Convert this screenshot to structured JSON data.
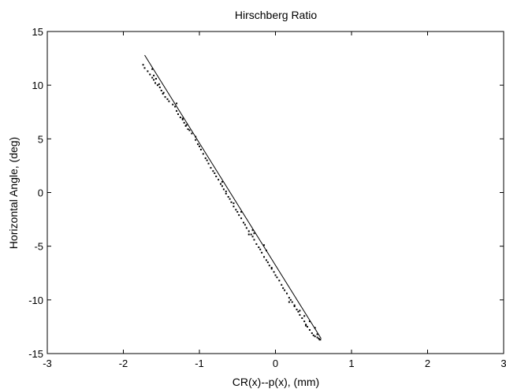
{
  "chart_data": {
    "type": "scatter",
    "title": "Hirschberg Ratio",
    "xlabel": "CR(x)--p(x), (mm)",
    "ylabel": "Horizontal Angle, (deg)",
    "xlim": [
      -3,
      3
    ],
    "ylim": [
      -15,
      15
    ],
    "xticks": [
      "-3",
      "-2",
      "-1",
      "0",
      "1",
      "2",
      "3"
    ],
    "yticks": [
      "15",
      "10",
      "5",
      "0",
      "-5",
      "-10",
      "-15"
    ],
    "grid": false,
    "marker_color": "#000000",
    "line_color": "#000000",
    "fit_line": {
      "x": [
        -1.72,
        0.6
      ],
      "y": [
        12.8,
        -13.6
      ]
    },
    "series": [
      {
        "x": [
          -1.74,
          -1.72,
          -1.68,
          -1.65,
          -1.62,
          -1.6,
          -1.58,
          -1.62,
          -1.55,
          -1.52,
          -1.5,
          -1.48,
          -1.45,
          -1.6,
          -1.57,
          -1.53,
          -1.47,
          -1.42,
          -1.4,
          -1.35,
          -1.32,
          -1.3,
          -1.28,
          -1.25,
          -1.22,
          -1.2,
          -1.18,
          -1.15,
          -1.22,
          -1.17,
          -1.13,
          -1.1,
          -1.05,
          -1.02,
          -1.0,
          -0.98,
          -0.95,
          -0.92,
          -0.9,
          -0.88,
          -0.85,
          -0.82,
          -0.8,
          -0.78,
          -0.75,
          -0.72,
          -0.7,
          -0.68,
          -0.65,
          -0.62,
          -0.6,
          -0.58,
          -0.55,
          -0.52,
          -0.5,
          -0.48,
          -0.45,
          -0.42,
          -0.4,
          -0.38,
          -0.35,
          -0.32,
          -0.3,
          -0.28,
          -0.25,
          -0.22,
          -0.2,
          -0.18,
          -0.15,
          -0.12,
          -0.1,
          -0.08,
          -0.05,
          -0.02,
          0.0,
          0.02,
          0.05,
          0.08,
          0.1,
          0.12,
          0.15,
          0.18,
          0.2,
          0.22,
          0.25,
          0.28,
          0.3,
          0.32,
          0.35,
          0.38,
          0.4,
          0.42,
          0.45,
          0.48,
          0.5,
          0.52,
          0.55,
          0.57,
          0.58,
          0.59,
          -0.3,
          -0.28,
          -0.15,
          -0.12,
          0.18,
          0.25,
          0.32,
          0.38,
          0.45,
          0.52,
          -0.7,
          -0.65,
          -0.55,
          -0.45,
          -1.3,
          -1.05,
          -0.35,
          -0.05,
          0.4,
          0.55
        ],
        "y": [
          11.9,
          11.6,
          11.3,
          11.0,
          10.7,
          10.5,
          10.2,
          11.5,
          10.0,
          9.8,
          9.5,
          9.2,
          8.9,
          10.9,
          10.6,
          10.1,
          9.3,
          8.7,
          8.5,
          8.2,
          8.0,
          7.6,
          7.3,
          7.0,
          6.8,
          6.5,
          6.2,
          5.9,
          6.9,
          6.3,
          5.8,
          5.5,
          4.9,
          4.5,
          4.3,
          4.0,
          3.6,
          3.2,
          3.0,
          2.7,
          2.3,
          2.0,
          1.8,
          1.5,
          1.2,
          0.8,
          0.6,
          0.3,
          -0.1,
          -0.4,
          -0.6,
          -0.9,
          -1.3,
          -1.6,
          -1.8,
          -2.1,
          -2.4,
          -2.8,
          -3.0,
          -3.3,
          -3.6,
          -3.9,
          -4.1,
          -4.4,
          -4.8,
          -5.1,
          -5.3,
          -5.6,
          -6.0,
          -6.3,
          -6.5,
          -6.8,
          -7.1,
          -7.4,
          -7.7,
          -7.9,
          -8.2,
          -8.6,
          -8.9,
          -9.1,
          -9.4,
          -9.8,
          -10.0,
          -10.2,
          -10.6,
          -10.9,
          -11.1,
          -11.4,
          -11.7,
          -12.0,
          -12.3,
          -12.5,
          -12.8,
          -13.1,
          -13.3,
          -13.4,
          -13.5,
          -13.6,
          -13.7,
          -13.7,
          -3.5,
          -3.8,
          -4.9,
          -5.4,
          -10.2,
          -10.5,
          -11.0,
          -11.5,
          -12.0,
          -12.6,
          1.0,
          0.1,
          -1.0,
          -1.8,
          8.3,
          5.2,
          -3.9,
          -7.0,
          -12.4,
          -13.2
        ]
      }
    ]
  }
}
